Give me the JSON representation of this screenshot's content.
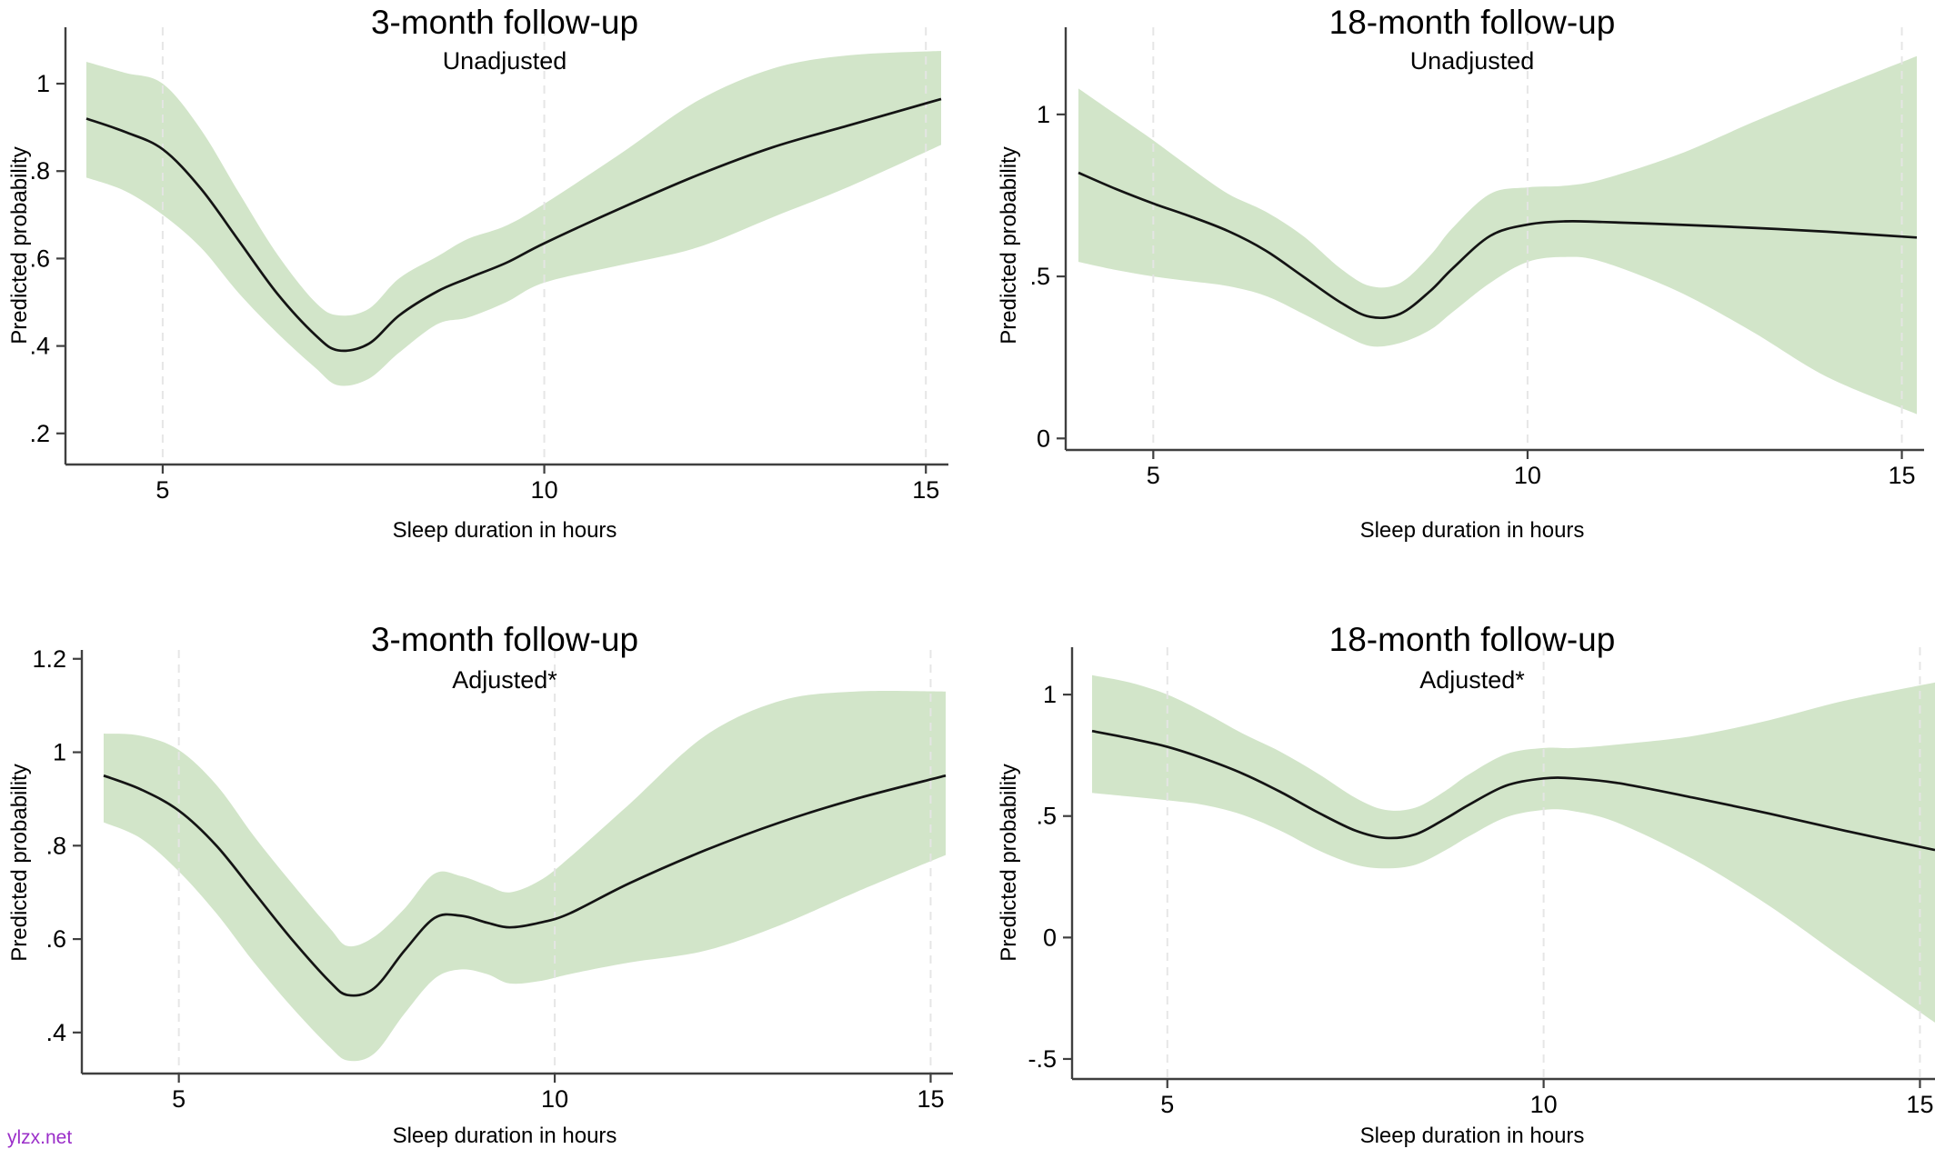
{
  "watermark": {
    "text": "ylzx.net",
    "color": "#9b2fc9"
  },
  "colors": {
    "band": "#d2e5c9",
    "line": "#141414",
    "grid": "#e5e5e5",
    "axis": "#3f3f3f",
    "text": "#000000",
    "background": "#ffffff"
  },
  "chart_data": [
    {
      "type": "line",
      "title": "3-month follow-up",
      "subtitle": "Unadjusted",
      "xlabel": "Sleep duration in hours",
      "ylabel": "Predicted probability",
      "xlim": [
        4,
        15.2
      ],
      "ylim": [
        0.133,
        1.129
      ],
      "grid": {
        "vertical_at": [
          5,
          10,
          15
        ],
        "style": "dashed",
        "horizontal": false
      },
      "legend": "none",
      "xticks": [
        {
          "v": 5,
          "label": "5"
        },
        {
          "v": 10,
          "label": "10"
        },
        {
          "v": 15,
          "label": "15"
        }
      ],
      "yticks": [
        {
          "v": 0.2,
          "label": ".2"
        },
        {
          "v": 0.4,
          "label": ".4"
        },
        {
          "v": 0.6,
          "label": ".6"
        },
        {
          "v": 0.8,
          "label": ".8"
        },
        {
          "v": 1,
          "label": "1"
        }
      ],
      "series": {
        "x": [
          4,
          4.5,
          5,
          5.5,
          6,
          6.5,
          7,
          7.3,
          7.7,
          8.1,
          8.6,
          9,
          9.5,
          10,
          11,
          12,
          13,
          14,
          15.2
        ],
        "mean": [
          0.92,
          0.89,
          0.85,
          0.76,
          0.64,
          0.52,
          0.425,
          0.39,
          0.405,
          0.47,
          0.525,
          0.555,
          0.59,
          0.635,
          0.715,
          0.79,
          0.855,
          0.905,
          0.965
        ],
        "ci_lower": [
          0.785,
          0.755,
          0.7,
          0.625,
          0.52,
          0.43,
          0.35,
          0.31,
          0.325,
          0.385,
          0.45,
          0.465,
          0.5,
          0.545,
          0.585,
          0.625,
          0.695,
          0.765,
          0.86
        ],
        "ci_upper": [
          1.05,
          1.025,
          1.0,
          0.895,
          0.75,
          0.61,
          0.5,
          0.47,
          0.485,
          0.555,
          0.605,
          0.645,
          0.675,
          0.725,
          0.84,
          0.96,
          1.035,
          1.065,
          1.075
        ]
      }
    },
    {
      "type": "line",
      "title": "18-month follow-up",
      "subtitle": "Unadjusted",
      "xlabel": "Sleep duration in hours",
      "ylabel": "Predicted probability",
      "xlim": [
        4,
        15.2
      ],
      "ylim": [
        -0.03,
        1.269
      ],
      "grid": {
        "vertical_at": [
          5,
          10,
          15
        ],
        "style": "dashed",
        "horizontal": false
      },
      "legend": "none",
      "xticks": [
        {
          "v": 5,
          "label": "5"
        },
        {
          "v": 10,
          "label": "10"
        },
        {
          "v": 15,
          "label": "15"
        }
      ],
      "yticks": [
        {
          "v": 0,
          "label": "0"
        },
        {
          "v": 0.5,
          "label": ".5"
        },
        {
          "v": 1,
          "label": "1"
        }
      ],
      "series": {
        "x": [
          4,
          4.5,
          5,
          5.5,
          6,
          6.5,
          7,
          7.5,
          7.9,
          8.3,
          8.7,
          9,
          9.5,
          10,
          10.5,
          11,
          12,
          13,
          14,
          15.2
        ],
        "mean": [
          0.82,
          0.77,
          0.725,
          0.685,
          0.64,
          0.58,
          0.5,
          0.42,
          0.375,
          0.385,
          0.455,
          0.525,
          0.625,
          0.66,
          0.67,
          0.668,
          0.66,
          0.65,
          0.638,
          0.62
        ],
        "ci_lower": [
          0.545,
          0.52,
          0.5,
          0.485,
          0.47,
          0.44,
          0.385,
          0.325,
          0.285,
          0.295,
          0.335,
          0.39,
          0.48,
          0.545,
          0.56,
          0.545,
          0.455,
          0.33,
          0.19,
          0.075
        ],
        "ci_upper": [
          1.08,
          1.0,
          0.92,
          0.835,
          0.755,
          0.7,
          0.625,
          0.525,
          0.47,
          0.48,
          0.565,
          0.65,
          0.755,
          0.775,
          0.78,
          0.8,
          0.875,
          0.975,
          1.07,
          1.18
        ]
      }
    },
    {
      "type": "line",
      "title": "3-month follow-up",
      "subtitle": "Adjusted*",
      "xlabel": "Sleep duration in hours",
      "ylabel": "Predicted probability",
      "xlim": [
        4,
        15.2
      ],
      "ylim": [
        0.316,
        1.219
      ],
      "grid": {
        "vertical_at": [
          5,
          10,
          15
        ],
        "style": "dashed",
        "horizontal": false
      },
      "legend": "none",
      "xticks": [
        {
          "v": 5,
          "label": "5"
        },
        {
          "v": 10,
          "label": "10"
        },
        {
          "v": 15,
          "label": "15"
        }
      ],
      "yticks": [
        {
          "v": 0.4,
          "label": ".4"
        },
        {
          "v": 0.6,
          "label": ".6"
        },
        {
          "v": 0.8,
          "label": ".8"
        },
        {
          "v": 1,
          "label": "1"
        },
        {
          "v": 1.2,
          "label": "1.2"
        }
      ],
      "series": {
        "x": [
          4,
          4.5,
          5,
          5.5,
          6,
          6.5,
          7,
          7.25,
          7.6,
          8,
          8.4,
          8.75,
          9.1,
          9.4,
          9.8,
          10.2,
          11,
          12,
          13,
          14,
          15.2
        ],
        "mean": [
          0.95,
          0.92,
          0.875,
          0.8,
          0.7,
          0.6,
          0.51,
          0.48,
          0.495,
          0.575,
          0.645,
          0.65,
          0.635,
          0.625,
          0.635,
          0.655,
          0.72,
          0.79,
          0.85,
          0.9,
          0.95
        ],
        "ci_lower": [
          0.85,
          0.815,
          0.745,
          0.655,
          0.55,
          0.455,
          0.37,
          0.34,
          0.355,
          0.44,
          0.515,
          0.535,
          0.525,
          0.505,
          0.51,
          0.525,
          0.55,
          0.575,
          0.63,
          0.7,
          0.78
        ],
        "ci_upper": [
          1.04,
          1.035,
          1.005,
          0.93,
          0.82,
          0.72,
          0.625,
          0.585,
          0.605,
          0.665,
          0.74,
          0.735,
          0.715,
          0.7,
          0.725,
          0.775,
          0.89,
          1.035,
          1.11,
          1.13,
          1.13
        ]
      }
    },
    {
      "type": "line",
      "title": "18-month follow-up",
      "subtitle": "Adjusted*",
      "xlabel": "Sleep duration in hours",
      "ylabel": "Predicted probability",
      "xlim": [
        4,
        15.2
      ],
      "ylim": [
        -0.575,
        1.195
      ],
      "grid": {
        "vertical_at": [
          5,
          10,
          15
        ],
        "style": "dashed",
        "horizontal": false
      },
      "legend": "none",
      "xticks": [
        {
          "v": 5,
          "label": "5"
        },
        {
          "v": 10,
          "label": "10"
        },
        {
          "v": 15,
          "label": "15"
        }
      ],
      "yticks": [
        {
          "v": -0.5,
          "label": "-.5"
        },
        {
          "v": 0,
          "label": "0"
        },
        {
          "v": 0.5,
          "label": ".5"
        },
        {
          "v": 1,
          "label": "1"
        }
      ],
      "series": {
        "x": [
          4,
          4.5,
          5,
          5.5,
          6,
          6.5,
          7,
          7.5,
          7.9,
          8.3,
          8.7,
          9,
          9.5,
          10,
          10.4,
          11,
          12,
          13,
          14,
          15.2
        ],
        "mean": [
          0.85,
          0.82,
          0.785,
          0.735,
          0.675,
          0.6,
          0.515,
          0.44,
          0.41,
          0.425,
          0.49,
          0.545,
          0.625,
          0.655,
          0.655,
          0.635,
          0.575,
          0.51,
          0.44,
          0.36
        ],
        "ci_lower": [
          0.595,
          0.58,
          0.565,
          0.545,
          0.505,
          0.44,
          0.36,
          0.3,
          0.285,
          0.3,
          0.36,
          0.415,
          0.495,
          0.525,
          0.52,
          0.47,
          0.32,
          0.13,
          -0.09,
          -0.35
        ],
        "ci_upper": [
          1.08,
          1.05,
          1.0,
          0.925,
          0.84,
          0.765,
          0.675,
          0.575,
          0.525,
          0.535,
          0.605,
          0.67,
          0.755,
          0.78,
          0.78,
          0.795,
          0.83,
          0.895,
          0.975,
          1.05
        ]
      }
    }
  ]
}
